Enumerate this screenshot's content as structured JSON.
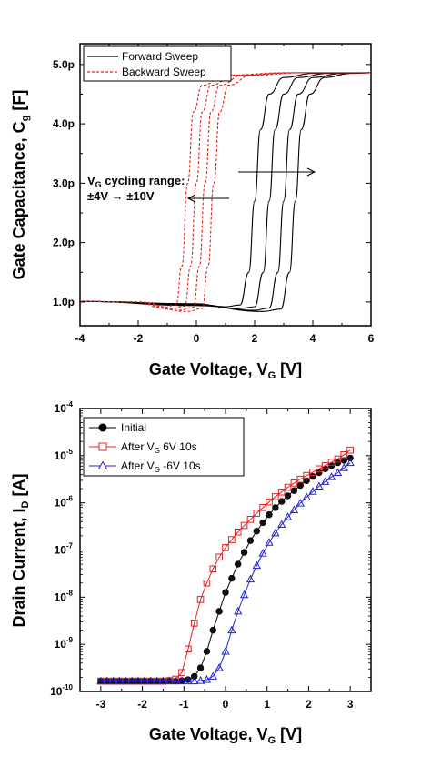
{
  "chart_data": [
    {
      "type": "line",
      "xlabel": "Gate Voltage, V",
      "xlabel_sub": "G",
      "xlabel_unit": " [V]",
      "ylabel": "Gate Capacitance, C",
      "ylabel_sub": "g",
      "ylabel_unit": " [F]",
      "xlim": [
        -4,
        6
      ],
      "ylim": [
        0.6,
        5.35
      ],
      "xticks": [
        -4,
        -2,
        0,
        2,
        4,
        6
      ],
      "xtick_labels": [
        "-4",
        "-2",
        "0",
        "2",
        "4",
        "6"
      ],
      "yticks": [
        1.0,
        2.0,
        3.0,
        4.0,
        5.0
      ],
      "ytick_labels": [
        "1.0p",
        "2.0p",
        "3.0p",
        "4.0p",
        "5.0p"
      ],
      "legend": [
        {
          "label": "Forward Sweep",
          "color": "#000000",
          "dash": "solid"
        },
        {
          "label": "Backward Sweep",
          "color": "#e02020",
          "dash": "dashed"
        }
      ],
      "annotation": {
        "line1_main": "V",
        "line1_sub": "G",
        "line1_rest": " cycling range:",
        "line2": "±4V → ±10V"
      },
      "series": [
        {
          "group": "Forward Sweep",
          "x": [
            -4,
            0,
            1,
            1.5,
            1.8,
            2.0,
            2.2,
            2.5,
            3,
            4,
            6
          ],
          "y": [
            1.01,
            0.97,
            0.92,
            0.95,
            1.5,
            2.7,
            3.9,
            4.5,
            4.78,
            4.85,
            4.86
          ]
        },
        {
          "group": "Forward Sweep",
          "x": [
            -4,
            0,
            1.5,
            2.0,
            2.3,
            2.5,
            2.7,
            3.0,
            3.5,
            4.5,
            6
          ],
          "y": [
            1.01,
            0.96,
            0.89,
            0.92,
            1.5,
            2.7,
            3.9,
            4.5,
            4.78,
            4.85,
            4.86
          ]
        },
        {
          "group": "Forward Sweep",
          "x": [
            -4,
            0,
            2.0,
            2.5,
            2.8,
            3.0,
            3.2,
            3.5,
            4.0,
            5.0,
            6
          ],
          "y": [
            1.01,
            0.95,
            0.86,
            0.9,
            1.5,
            2.7,
            3.9,
            4.5,
            4.78,
            4.85,
            4.86
          ]
        },
        {
          "group": "Forward Sweep",
          "x": [
            -4,
            0,
            2.3,
            2.9,
            3.2,
            3.4,
            3.6,
            3.9,
            4.4,
            5.3,
            6
          ],
          "y": [
            1.01,
            0.94,
            0.84,
            0.88,
            1.5,
            2.7,
            3.9,
            4.5,
            4.78,
            4.85,
            4.86
          ]
        },
        {
          "group": "Backward Sweep",
          "x": [
            -4,
            -2,
            -1.2,
            -0.7,
            -0.5,
            -0.3,
            -0.1,
            0.2,
            1.0,
            3.0,
            6
          ],
          "y": [
            1.01,
            1.0,
            0.9,
            0.95,
            1.6,
            3.0,
            4.2,
            4.65,
            4.82,
            4.86,
            4.86
          ]
        },
        {
          "group": "Backward Sweep",
          "x": [
            -4,
            -2,
            -0.9,
            -0.4,
            -0.2,
            0.0,
            0.2,
            0.5,
            1.3,
            3.2,
            6
          ],
          "y": [
            1.01,
            1.0,
            0.88,
            0.93,
            1.6,
            3.0,
            4.2,
            4.65,
            4.82,
            4.86,
            4.86
          ]
        },
        {
          "group": "Backward Sweep",
          "x": [
            -4,
            -2,
            -0.6,
            -0.1,
            0.1,
            0.3,
            0.5,
            0.8,
            1.6,
            3.4,
            6
          ],
          "y": [
            1.01,
            1.0,
            0.86,
            0.91,
            1.6,
            3.0,
            4.2,
            4.65,
            4.82,
            4.86,
            4.86
          ]
        },
        {
          "group": "Backward Sweep",
          "x": [
            -4,
            -2,
            -0.3,
            0.2,
            0.4,
            0.6,
            0.8,
            1.1,
            1.9,
            3.6,
            6
          ],
          "y": [
            1.01,
            1.0,
            0.84,
            0.89,
            1.6,
            3.0,
            4.2,
            4.65,
            4.82,
            4.86,
            4.86
          ]
        }
      ]
    },
    {
      "type": "scatter",
      "xlabel": "Gate Voltage, V",
      "xlabel_sub": "G",
      "xlabel_unit": " [V]",
      "ylabel": "Drain Current, I",
      "ylabel_sub": "D",
      "ylabel_unit": " [A]",
      "yscale": "log",
      "xlim": [
        -3.5,
        3.5
      ],
      "ylim_exp": [
        -10,
        -4
      ],
      "xticks": [
        -3,
        -2,
        -1,
        0,
        1,
        2,
        3
      ],
      "xtick_labels": [
        "-3",
        "-2",
        "-1",
        "0",
        "1",
        "2",
        "3"
      ],
      "ytick_exps": [
        "-10",
        "-9",
        "-8",
        "-7",
        "-6",
        "-5",
        "-4"
      ],
      "ytick_base": "10",
      "legend": [
        {
          "label": "Initial",
          "color": "#000000",
          "marker": "circle-filled"
        },
        {
          "label_main": "After V",
          "label_sub": "G",
          "label_rest": " 6V 10s",
          "color": "#e02020",
          "marker": "square-open"
        },
        {
          "label_main": "After V",
          "label_sub": "G",
          "label_rest": " -6V 10s",
          "color": "#2020d0",
          "marker": "triangle-open"
        }
      ],
      "x": [
        -3,
        -2.85,
        -2.7,
        -2.55,
        -2.4,
        -2.25,
        -2.1,
        -1.95,
        -1.8,
        -1.65,
        -1.5,
        -1.35,
        -1.2,
        -1.05,
        -0.9,
        -0.75,
        -0.6,
        -0.45,
        -0.3,
        -0.15,
        0,
        0.15,
        0.3,
        0.45,
        0.6,
        0.75,
        0.9,
        1.05,
        1.2,
        1.35,
        1.5,
        1.65,
        1.8,
        1.95,
        2.1,
        2.25,
        2.4,
        2.55,
        2.7,
        2.85,
        3
      ],
      "series": [
        {
          "name": "Initial",
          "log10_values": [
            -9.78,
            -9.78,
            -9.78,
            -9.78,
            -9.78,
            -9.78,
            -9.78,
            -9.78,
            -9.78,
            -9.78,
            -9.78,
            -9.78,
            -9.78,
            -9.77,
            -9.75,
            -9.68,
            -9.5,
            -9.15,
            -8.7,
            -8.3,
            -7.9,
            -7.6,
            -7.3,
            -7.05,
            -6.8,
            -6.6,
            -6.42,
            -6.25,
            -6.1,
            -5.97,
            -5.85,
            -5.74,
            -5.63,
            -5.53,
            -5.44,
            -5.36,
            -5.28,
            -5.21,
            -5.15,
            -5.1,
            -5.05
          ]
        },
        {
          "name": "After VG 6V 10s",
          "log10_values": [
            -9.78,
            -9.78,
            -9.78,
            -9.78,
            -9.78,
            -9.78,
            -9.78,
            -9.78,
            -9.78,
            -9.78,
            -9.78,
            -9.77,
            -9.74,
            -9.6,
            -9.1,
            -8.55,
            -8.05,
            -7.7,
            -7.4,
            -7.15,
            -6.95,
            -6.78,
            -6.62,
            -6.48,
            -6.35,
            -6.22,
            -6.1,
            -5.98,
            -5.87,
            -5.77,
            -5.67,
            -5.58,
            -5.5,
            -5.42,
            -5.35,
            -5.28,
            -5.21,
            -5.14,
            -5.07,
            -4.98,
            -4.88
          ]
        },
        {
          "name": "After VG -6V 10s",
          "log10_values": [
            -9.78,
            -9.78,
            -9.78,
            -9.78,
            -9.78,
            -9.78,
            -9.78,
            -9.78,
            -9.78,
            -9.78,
            -9.78,
            -9.78,
            -9.78,
            -9.78,
            -9.78,
            -9.78,
            -9.77,
            -9.75,
            -9.68,
            -9.5,
            -9.15,
            -8.7,
            -8.3,
            -7.95,
            -7.62,
            -7.33,
            -7.07,
            -6.84,
            -6.64,
            -6.46,
            -6.3,
            -6.15,
            -6.01,
            -5.88,
            -5.76,
            -5.65,
            -5.55,
            -5.45,
            -5.36,
            -5.26,
            -5.15
          ]
        }
      ]
    }
  ]
}
